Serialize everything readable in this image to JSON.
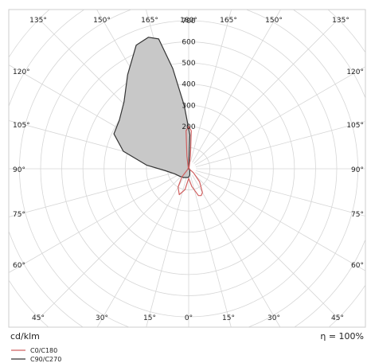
{
  "chart_data": {
    "type": "polar",
    "title": "",
    "unit_label": "cd/klm",
    "efficiency_label": "η = 100%",
    "radial_max": 700,
    "radial_ticks": [
      200,
      300,
      400,
      500,
      600,
      700
    ],
    "angle_labels_top": [
      "135°",
      "150°",
      "165°",
      "180°",
      "165°",
      "150°",
      "135°"
    ],
    "angle_labels_side": [
      "120°",
      "105°",
      "90°",
      "75°",
      "60°"
    ],
    "angle_labels_bottom": [
      "45°",
      "30°",
      "15°",
      "0°",
      "15°",
      "30°",
      "45°"
    ],
    "series": [
      {
        "name": "C0/C180",
        "color": "#d06060",
        "fill": "none",
        "points": [
          {
            "angle": 0,
            "value": 45
          },
          {
            "angle": 10,
            "value": 85
          },
          {
            "angle": 20,
            "value": 135
          },
          {
            "angle": 25,
            "value": 140
          },
          {
            "angle": 30,
            "value": 130
          },
          {
            "angle": 40,
            "value": 80
          },
          {
            "angle": 50,
            "value": 30
          },
          {
            "angle": 60,
            "value": 5
          },
          {
            "angle": 160,
            "value": 5
          },
          {
            "angle": 172,
            "value": 60
          },
          {
            "angle": 176,
            "value": 180
          },
          {
            "angle": 180,
            "value": 200
          },
          {
            "angle": 184,
            "value": 180
          },
          {
            "angle": 188,
            "value": 60
          },
          {
            "angle": 200,
            "value": 5
          },
          {
            "angle": 300,
            "value": 5
          },
          {
            "angle": 320,
            "value": 50
          },
          {
            "angle": 330,
            "value": 100
          },
          {
            "angle": 340,
            "value": 130
          },
          {
            "angle": 350,
            "value": 100
          },
          {
            "angle": 360,
            "value": 45
          }
        ]
      },
      {
        "name": "C90/C270",
        "color": "#333333",
        "fill": "#c8c8c8",
        "points": [
          {
            "angle": 0,
            "value": 40
          },
          {
            "angle": 10,
            "value": 30
          },
          {
            "angle": 40,
            "value": 8
          },
          {
            "angle": 90,
            "value": 0
          },
          {
            "angle": 130,
            "value": 0
          },
          {
            "angle": 165,
            "value": 0
          },
          {
            "angle": 178,
            "value": 160
          },
          {
            "angle": 184,
            "value": 300
          },
          {
            "angle": 189,
            "value": 480
          },
          {
            "angle": 193,
            "value": 630
          },
          {
            "angle": 197,
            "value": 650
          },
          {
            "angle": 203,
            "value": 635
          },
          {
            "angle": 213,
            "value": 530
          },
          {
            "angle": 224,
            "value": 440
          },
          {
            "angle": 235,
            "value": 400
          },
          {
            "angle": 245,
            "value": 390
          },
          {
            "angle": 255,
            "value": 320
          },
          {
            "angle": 265,
            "value": 200
          },
          {
            "angle": 275,
            "value": 110
          },
          {
            "angle": 290,
            "value": 70
          },
          {
            "angle": 310,
            "value": 55
          },
          {
            "angle": 330,
            "value": 48
          },
          {
            "angle": 350,
            "value": 42
          },
          {
            "angle": 360,
            "value": 40
          }
        ]
      }
    ]
  }
}
